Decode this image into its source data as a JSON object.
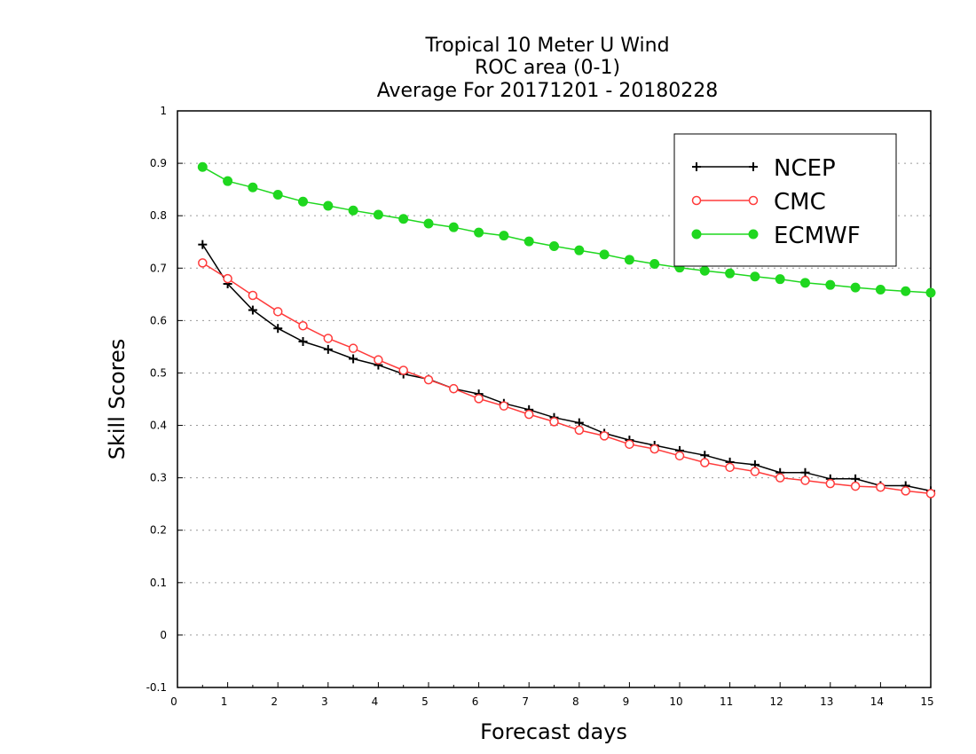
{
  "chart_data": {
    "type": "line",
    "title_lines": [
      "Tropical 10 Meter U Wind",
      "ROC area (0-1)",
      "Average For 20171201 - 20180228"
    ],
    "xlabel": "Forecast days",
    "ylabel": "Skill Scores",
    "xlim": [
      0,
      15
    ],
    "ylim": [
      -0.1,
      1
    ],
    "xticks": [
      "0",
      "1",
      "2",
      "3",
      "4",
      "5",
      "6",
      "7",
      "8",
      "9",
      "10",
      "11",
      "12",
      "13",
      "14",
      "15"
    ],
    "yticks": [
      "-0.1",
      "0",
      "0.1",
      "0.2",
      "0.3",
      "0.4",
      "0.5",
      "0.6",
      "0.7",
      "0.8",
      "0.9",
      "1"
    ],
    "grid": true,
    "legend_position": "top-right",
    "x": [
      0.5,
      1,
      1.5,
      2,
      2.5,
      3,
      3.5,
      4,
      4.5,
      5,
      5.5,
      6,
      6.5,
      7,
      7.5,
      8,
      8.5,
      9,
      9.5,
      10,
      10.5,
      11,
      11.5,
      12,
      12.5,
      13,
      13.5,
      14,
      14.5,
      15
    ],
    "series": [
      {
        "name": "NCEP",
        "color": "#000000",
        "marker": "plus",
        "values": [
          0.745,
          0.67,
          0.62,
          0.585,
          0.56,
          0.545,
          0.527,
          0.515,
          0.498,
          0.488,
          0.47,
          0.46,
          0.442,
          0.43,
          0.415,
          0.405,
          0.385,
          0.372,
          0.362,
          0.352,
          0.343,
          0.33,
          0.325,
          0.31,
          0.31,
          0.298,
          0.298,
          0.285,
          0.285,
          0.275
        ]
      },
      {
        "name": "CMC",
        "color": "#ff3b3b",
        "marker": "open-circle",
        "values": [
          0.71,
          0.68,
          0.648,
          0.617,
          0.59,
          0.566,
          0.547,
          0.525,
          0.505,
          0.487,
          0.47,
          0.451,
          0.437,
          0.421,
          0.407,
          0.391,
          0.38,
          0.364,
          0.355,
          0.342,
          0.329,
          0.32,
          0.312,
          0.3,
          0.295,
          0.289,
          0.284,
          0.282,
          0.275,
          0.27
        ]
      },
      {
        "name": "ECMWF",
        "color": "#1fd71f",
        "marker": "filled-circle",
        "values": [
          0.893,
          0.866,
          0.854,
          0.84,
          0.827,
          0.819,
          0.81,
          0.802,
          0.794,
          0.785,
          0.778,
          0.768,
          0.762,
          0.751,
          0.742,
          0.734,
          0.726,
          0.716,
          0.708,
          0.701,
          0.695,
          0.69,
          0.684,
          0.679,
          0.672,
          0.668,
          0.663,
          0.659,
          0.656,
          0.653
        ]
      }
    ]
  }
}
